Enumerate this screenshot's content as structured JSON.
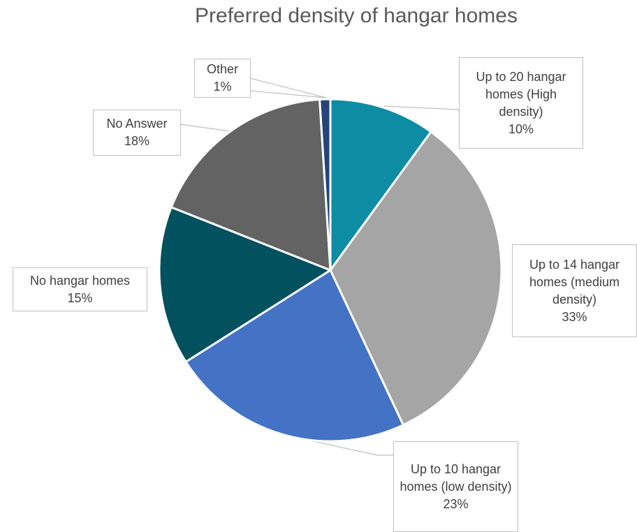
{
  "chart_data": {
    "type": "pie",
    "title": "Preferred density of hangar homes",
    "categories": [
      "Up to 20 hangar homes (High density)",
      "Up to 14 hangar homes (medium density)",
      "Up to 10 hangar homes (low density)",
      "No hangar homes",
      "No Answer",
      "Other"
    ],
    "values": [
      10,
      33,
      23,
      15,
      18,
      1
    ],
    "value_labels": [
      "10%",
      "33%",
      "23%",
      "15%",
      "18%",
      "1%"
    ],
    "colors": [
      "#0e8ca4",
      "#a5a5a5",
      "#4472c4",
      "#02515f",
      "#636363",
      "#264478"
    ]
  }
}
